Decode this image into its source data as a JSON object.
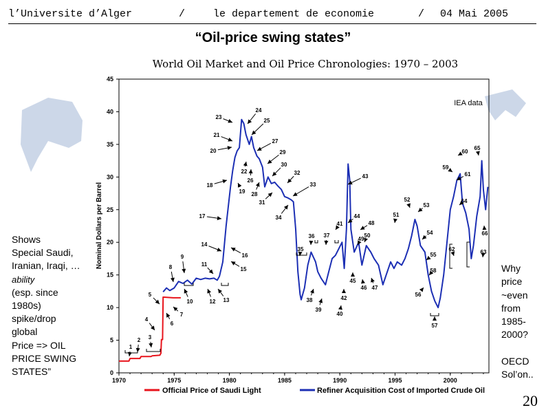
{
  "header": {
    "university": "l’Universite d’Alger",
    "sep1": "/",
    "department": "le departement de economie",
    "sep2": "/",
    "date": "04 Mai 2005"
  },
  "slide_title": "“Oil-price swing states”",
  "chart_title": "World Oil Market and Oil Price Chronologies: 1970 – 2003",
  "left_note": {
    "lines": [
      "Shows",
      "Special Saudi,",
      "Iranian, Iraqi, …"
    ],
    "italic": "ability",
    "lines2": [
      "(esp. since",
      "1980s)",
      "spike/drop",
      "global",
      "Price => OIL",
      "PRICE SWING",
      "STATES”"
    ]
  },
  "right_note": {
    "lines": [
      "Why",
      "price",
      "~even",
      "from",
      "1985-",
      "2000?"
    ],
    "lines2": [
      "OECD",
      "Sol’on.."
    ]
  },
  "page_number": "20",
  "colors": {
    "saudi": "#e8141c",
    "refiner": "#1c2fb4",
    "bg": "#ffffff",
    "shape": "#c7d3e6"
  },
  "chart_data": {
    "type": "line",
    "title": "World Oil Market and Oil Price Chronologies: 1970 – 2003",
    "ylabel": "Nominal Dollars per Barrel",
    "xlabel": "",
    "xlim": [
      1970,
      2003.5
    ],
    "ylim": [
      0,
      45
    ],
    "y_ticks": [
      0,
      5,
      10,
      15,
      20,
      25,
      30,
      35,
      40,
      45
    ],
    "x_ticks": [
      1970,
      1975,
      1980,
      1985,
      1990,
      1995,
      2000
    ],
    "source_note": "IEA data",
    "legend": [
      "Official Price of Saudi Light",
      "Refiner Acquisition Cost of Imported Crude Oil"
    ],
    "legend_position": "bottom",
    "series": [
      {
        "name": "Official Price of Saudi Light",
        "color": "#e8141c",
        "points": [
          [
            1970,
            1.8
          ],
          [
            1970.9,
            1.8
          ],
          [
            1971.0,
            2.2
          ],
          [
            1971.9,
            2.2
          ],
          [
            1972.0,
            2.5
          ],
          [
            1972.9,
            2.5
          ],
          [
            1973.0,
            2.6
          ],
          [
            1973.7,
            2.7
          ],
          [
            1973.8,
            3.0
          ],
          [
            1973.85,
            5.1
          ],
          [
            1973.95,
            5.1
          ],
          [
            1974.0,
            11.6
          ],
          [
            1974.9,
            11.5
          ],
          [
            1975.0,
            11.5
          ],
          [
            1975.6,
            11.5
          ]
        ]
      },
      {
        "name": "Refiner Acquisition Cost of Imported Crude Oil",
        "color": "#1c2fb4",
        "points": [
          [
            1974.0,
            12.4
          ],
          [
            1974.3,
            13.0
          ],
          [
            1974.6,
            12.6
          ],
          [
            1975.0,
            13.0
          ],
          [
            1975.4,
            14.0
          ],
          [
            1975.8,
            13.7
          ],
          [
            1976.2,
            14.2
          ],
          [
            1976.6,
            13.6
          ],
          [
            1977.0,
            14.5
          ],
          [
            1977.4,
            14.3
          ],
          [
            1977.8,
            14.5
          ],
          [
            1978.2,
            14.4
          ],
          [
            1978.6,
            14.5
          ],
          [
            1978.9,
            14.2
          ],
          [
            1979.1,
            14.8
          ],
          [
            1979.4,
            17.0
          ],
          [
            1979.7,
            22.5
          ],
          [
            1979.9,
            25.5
          ],
          [
            1980.1,
            28.5
          ],
          [
            1980.3,
            31.0
          ],
          [
            1980.5,
            33.0
          ],
          [
            1980.7,
            34.0
          ],
          [
            1980.9,
            34.5
          ],
          [
            1981.1,
            38.8
          ],
          [
            1981.3,
            38.2
          ],
          [
            1981.5,
            36.5
          ],
          [
            1981.8,
            35.0
          ],
          [
            1982.0,
            36.2
          ],
          [
            1982.2,
            34.5
          ],
          [
            1982.5,
            33.2
          ],
          [
            1982.7,
            32.8
          ],
          [
            1983.0,
            31.5
          ],
          [
            1983.2,
            28.5
          ],
          [
            1983.5,
            30.0
          ],
          [
            1983.8,
            29.0
          ],
          [
            1984.1,
            29.2
          ],
          [
            1984.4,
            28.6
          ],
          [
            1984.7,
            28.1
          ],
          [
            1985.0,
            27.0
          ],
          [
            1985.3,
            26.8
          ],
          [
            1985.6,
            26.5
          ],
          [
            1985.8,
            26.2
          ],
          [
            1986.0,
            22.0
          ],
          [
            1986.2,
            15.5
          ],
          [
            1986.4,
            12.0
          ],
          [
            1986.5,
            11.2
          ],
          [
            1986.8,
            13.0
          ],
          [
            1987.1,
            16.5
          ],
          [
            1987.4,
            18.5
          ],
          [
            1987.8,
            17.0
          ],
          [
            1988.0,
            15.5
          ],
          [
            1988.3,
            14.5
          ],
          [
            1988.7,
            13.5
          ],
          [
            1989.0,
            15.5
          ],
          [
            1989.3,
            17.5
          ],
          [
            1989.6,
            18.0
          ],
          [
            1989.9,
            19.0
          ],
          [
            1990.2,
            20.0
          ],
          [
            1990.4,
            16.0
          ],
          [
            1990.6,
            22.0
          ],
          [
            1990.75,
            32.0
          ],
          [
            1990.9,
            29.5
          ],
          [
            1991.0,
            22.0
          ],
          [
            1991.3,
            18.5
          ],
          [
            1991.7,
            20.0
          ],
          [
            1992.0,
            16.5
          ],
          [
            1992.4,
            19.5
          ],
          [
            1992.8,
            18.5
          ],
          [
            1993.1,
            17.5
          ],
          [
            1993.5,
            16.5
          ],
          [
            1993.9,
            13.5
          ],
          [
            1994.2,
            15.0
          ],
          [
            1994.6,
            17.0
          ],
          [
            1994.9,
            16.0
          ],
          [
            1995.2,
            17.0
          ],
          [
            1995.6,
            16.5
          ],
          [
            1995.9,
            17.5
          ],
          [
            1996.2,
            19.0
          ],
          [
            1996.5,
            21.0
          ],
          [
            1996.8,
            23.5
          ],
          [
            1997.0,
            22.5
          ],
          [
            1997.3,
            19.5
          ],
          [
            1997.7,
            18.5
          ],
          [
            1998.0,
            15.0
          ],
          [
            1998.3,
            12.5
          ],
          [
            1998.6,
            11.0
          ],
          [
            1998.9,
            10.0
          ],
          [
            1999.1,
            11.5
          ],
          [
            1999.4,
            15.0
          ],
          [
            1999.7,
            20.0
          ],
          [
            2000.0,
            25.0
          ],
          [
            2000.3,
            27.0
          ],
          [
            2000.6,
            29.5
          ],
          [
            2000.9,
            30.5
          ],
          [
            2001.1,
            26.0
          ],
          [
            2001.4,
            24.5
          ],
          [
            2001.7,
            22.0
          ],
          [
            2001.9,
            17.5
          ],
          [
            2002.1,
            19.5
          ],
          [
            2002.4,
            24.0
          ],
          [
            2002.7,
            27.0
          ],
          [
            2002.85,
            32.5
          ],
          [
            2003.0,
            28.0
          ],
          [
            2003.2,
            25.0
          ],
          [
            2003.4,
            28.5
          ]
        ]
      }
    ],
    "annotations": [
      "1",
      "2",
      "3",
      "4",
      "5",
      "6",
      "7",
      "8",
      "9",
      "10",
      "11",
      "12",
      "13",
      "14",
      "15",
      "16",
      "17",
      "18",
      "19",
      "20",
      "21",
      "22",
      "23",
      "24",
      "25",
      "26",
      "27",
      "28",
      "29",
      "30",
      "31",
      "32",
      "33",
      "34",
      "35",
      "36",
      "37",
      "38",
      "39",
      "40",
      "41",
      "42",
      "43",
      "44",
      "45",
      "46",
      "47",
      "48",
      "49",
      "50",
      "51",
      "52",
      "53",
      "54",
      "55",
      "56",
      "57",
      "58",
      "59",
      "60",
      "61",
      "62",
      "63",
      "64",
      "65",
      "66"
    ]
  }
}
